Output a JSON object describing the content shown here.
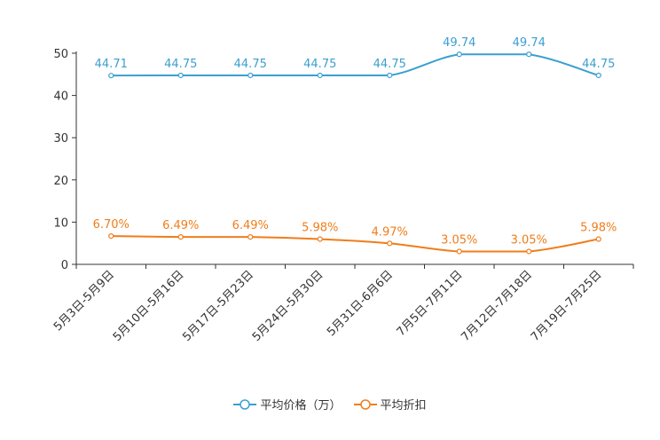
{
  "chart_data": {
    "type": "line",
    "categories": [
      "5月3日-5月9日",
      "5月10日-5月16日",
      "5月17日-5月23日",
      "5月24日-5月30日",
      "5月31日-6月6日",
      "7月5日-7月11日",
      "7月12日-7月18日",
      "7月19日-7月25日"
    ],
    "series": [
      {
        "name": "平均价格（万）",
        "color": "#3b9fd1",
        "values": [
          44.71,
          44.75,
          44.75,
          44.75,
          44.75,
          49.74,
          49.74,
          44.75
        ],
        "labels": [
          "44.71",
          "44.75",
          "44.75",
          "44.75",
          "44.75",
          "49.74",
          "49.74",
          "44.75"
        ]
      },
      {
        "name": "平均折扣",
        "color": "#f07d1a",
        "values": [
          6.7,
          6.49,
          6.49,
          5.98,
          4.97,
          3.05,
          3.05,
          5.98
        ],
        "labels": [
          "6.70%",
          "6.49%",
          "6.49%",
          "5.98%",
          "4.97%",
          "3.05%",
          "3.05%",
          "5.98%"
        ]
      }
    ],
    "ylim": [
      0,
      50
    ],
    "yticks": [
      "0",
      "10",
      "20",
      "30",
      "40",
      "50"
    ],
    "title": "",
    "xlabel": "",
    "ylabel": "",
    "legend_position": "bottom-center"
  }
}
